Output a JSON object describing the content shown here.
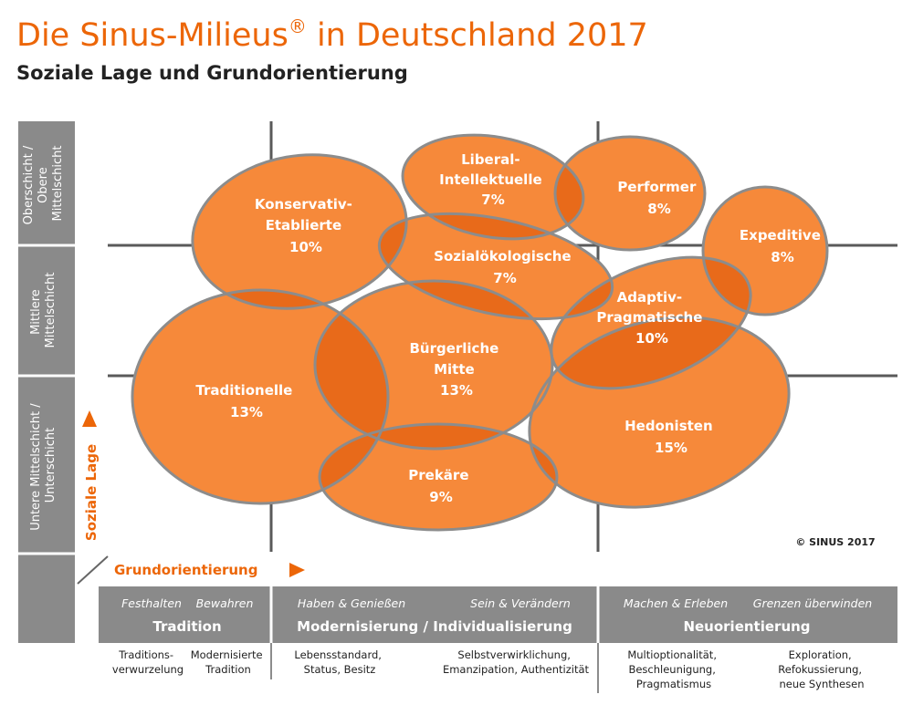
{
  "title": "Die Sinus-Milieus",
  "title_registered": "®",
  "title_rest": " in Deutschland 2017",
  "subtitle": "Soziale Lage und Grundorientierung",
  "colors": {
    "accent": "#ec6608",
    "bubble": "#f6893a",
    "overlap": "#e86a1a",
    "axis_gray": "#8a8a8a",
    "stroke": "#8c8c8c",
    "label_text": "#ffffff",
    "dark_text": "#222222"
  },
  "y_axis": {
    "label": "Soziale Lage",
    "levels": [
      {
        "line1": "Oberschicht /",
        "line2": "Obere",
        "line3": "Mittelschicht"
      },
      {
        "line1": "Mittlere",
        "line2": "Mittelschicht"
      },
      {
        "line1": "Untere Mittelschicht /",
        "line2": "Unterschicht"
      }
    ]
  },
  "x_axis": {
    "label": "Grundorientierung",
    "sections": [
      {
        "title": "Tradition",
        "sub": [
          "Festhalten",
          "Bewahren"
        ],
        "desc": [
          {
            "line1": "Traditions-",
            "line2": "verwurzelung"
          },
          {
            "line1": "Modernisierte",
            "line2": "Tradition"
          }
        ]
      },
      {
        "title": "Modernisierung / Individualisierung",
        "sub": [
          "Haben & Genießen",
          "Sein & Verändern"
        ],
        "desc": [
          {
            "line1": "Lebensstandard,",
            "line2": "Status, Besitz"
          },
          {
            "line1": "Selbstverwirklichung,",
            "line2": "Emanzipation, Authentizität"
          }
        ]
      },
      {
        "title": "Neuorientierung",
        "sub": [
          "Machen & Erleben",
          "Grenzen überwinden"
        ],
        "desc": [
          {
            "line1": "Multioptionalität,",
            "line2": "Beschleunigung,",
            "line3": "Pragmatismus"
          },
          {
            "line1": "Exploration,",
            "line2": "Refokussierung,",
            "line3": "neue Synthesen"
          }
        ]
      }
    ]
  },
  "milieus": [
    {
      "id": "konservativ",
      "line1": "Konservativ-",
      "line2": "Etablierte",
      "share": "10%"
    },
    {
      "id": "liberal",
      "line1": "Liberal-",
      "line2": "Intellektuelle",
      "share": "7%"
    },
    {
      "id": "performer",
      "line1": "Performer",
      "share": "8%"
    },
    {
      "id": "expeditive",
      "line1": "Expeditive",
      "share": "8%"
    },
    {
      "id": "sozialoeko",
      "line1": "Sozialökologische",
      "share": "7%"
    },
    {
      "id": "adaptiv",
      "line1": "Adaptiv-",
      "line2": "Pragmatische",
      "share": "10%"
    },
    {
      "id": "traditionelle",
      "line1": "Traditionelle",
      "share": "13%"
    },
    {
      "id": "buergerliche",
      "line1": "Bürgerliche",
      "line2": "Mitte",
      "share": "13%"
    },
    {
      "id": "hedonisten",
      "line1": "Hedonisten",
      "share": "15%"
    },
    {
      "id": "prekaere",
      "line1": "Prekäre",
      "share": "9%"
    }
  ],
  "copyright": "© SINUS 2017"
}
